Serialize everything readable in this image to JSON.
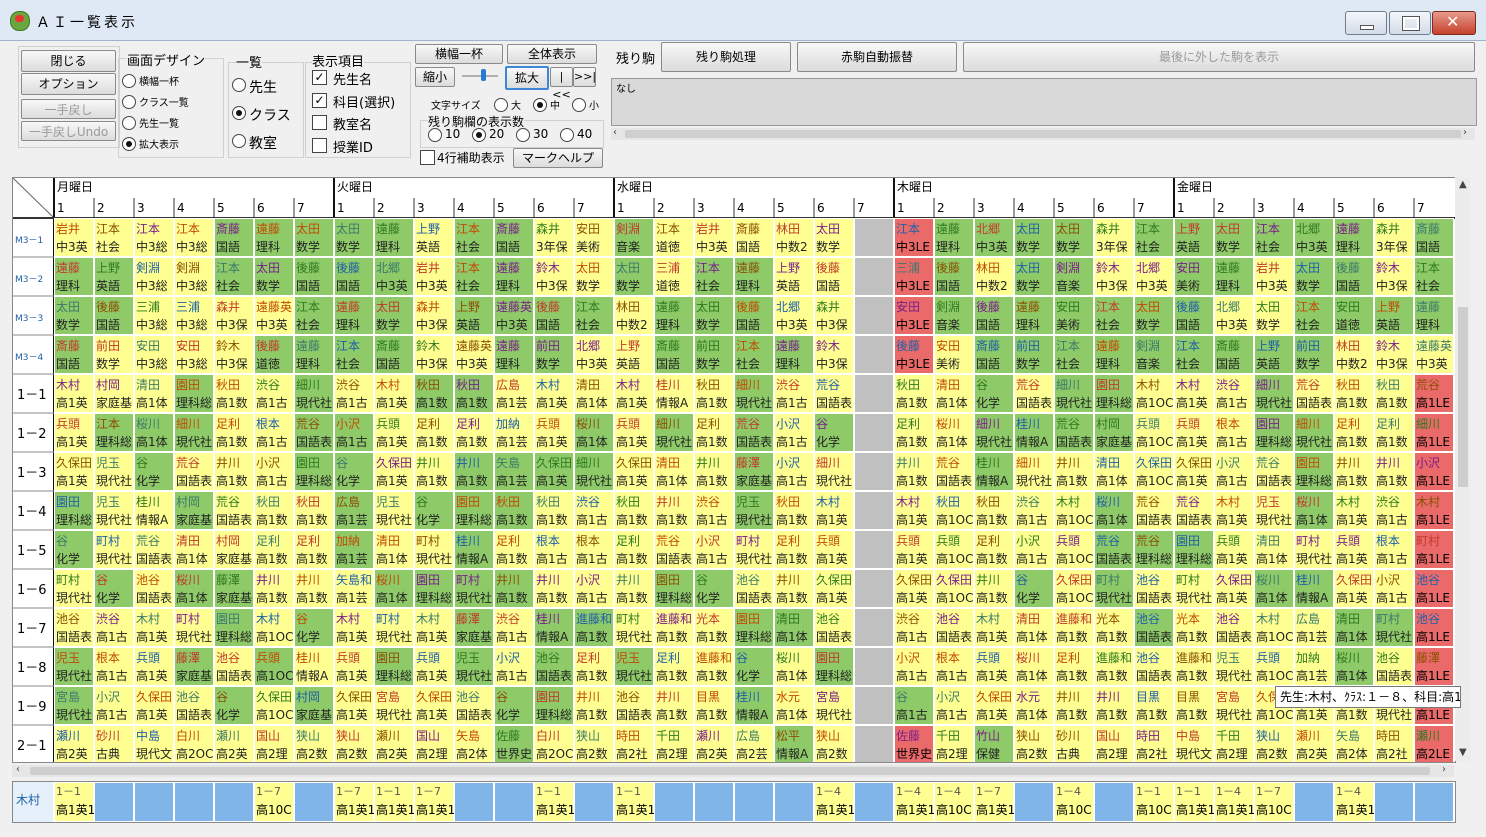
{
  "window": {
    "title": "ＡＩ一覧表示"
  },
  "left_buttons": {
    "close": "閉じる",
    "options": "オプション",
    "undo": "一手戻し",
    "undo_undo": "一手戻しUndo"
  },
  "screen_design": {
    "title": "画面デザイン",
    "options": [
      "横幅一杯",
      "クラス一覧",
      "先生一覧",
      "拡大表示"
    ],
    "selected": 3
  },
  "list": {
    "title": "一覧",
    "options": [
      "先生",
      "クラス",
      "教室"
    ],
    "selected": 1
  },
  "display_items": {
    "title": "表示項目",
    "options": [
      {
        "label": "先生名",
        "checked": true
      },
      {
        "label": "科目(選択)",
        "checked": true
      },
      {
        "label": "教室名",
        "checked": false
      },
      {
        "label": "授業ID",
        "checked": false
      }
    ]
  },
  "view": {
    "full_width": "横幅一杯",
    "show_all": "全体表示",
    "shrink": "縮小",
    "enlarge": "拡大",
    "first": "|<<",
    "last": ">>|",
    "font_size_label": "文字サイズ",
    "font_sizes": [
      "大",
      "中",
      "小"
    ],
    "font_selected": 1,
    "rows_label": "残り駒欄の表示数",
    "rows": [
      "10",
      "20",
      "30",
      "40"
    ],
    "rows_selected": 1,
    "four_row_label": "4行補助表示",
    "four_row_checked": false,
    "mark_help": "マークヘルプ"
  },
  "remaining": {
    "label": "残り駒",
    "process": "残り駒処理",
    "auto_swap": "赤駒自動振替",
    "show_last": "最後に外した駒を表示",
    "panel_text": "なし"
  },
  "colors": {
    "green": "#8fca69",
    "yellow": "#ffff91",
    "red": "#ea6a6a",
    "gray": "#c0c0c0",
    "white": "#ffffff",
    "blue": "#80b5ea"
  },
  "grid": {
    "days": [
      "月曜日",
      "火曜日",
      "水曜日",
      "木曜日",
      "金曜日"
    ],
    "periods": [
      "1",
      "2",
      "3",
      "4",
      "5",
      "6",
      "7"
    ],
    "rows": [
      "M3－1",
      "M3－2",
      "M3－3",
      "M3－4",
      "1－1",
      "1－2",
      "1－3",
      "1－4",
      "1－5",
      "1－6",
      "1－7",
      "1－8",
      "1－9",
      "2－1"
    ],
    "cells": [
      [
        "y|岩井|中3英",
        "y|江本|社会",
        "y|江本|中3総",
        "y|江本|中3総",
        "g|斎藤|国語",
        "g|遠藤|理科",
        "g|太田|数学",
        "g|太田|数学",
        "g|遠藤|理科",
        "y|上野|英語",
        "g|江本|社会",
        "g|斎藤|国語",
        "y|森井|3年保",
        "y|安田|美術",
        "g|剣淵|音楽",
        "y|江本|道徳",
        "y|岩井|中3英",
        "y|斎藤|国語",
        "y|林田|中数2",
        "y|太田|数学",
        "x",
        "r|江本|中3LE",
        "g|遠藤|理科",
        "g|北郷|中3英",
        "g|太田|数学",
        "g|太田|数学",
        "y|森井|3年保",
        "g|江本|社会",
        "g|上野|英語",
        "g|太田|数学",
        "g|江本|社会",
        "g|北郷|中3英",
        "g|遠藤|理科",
        "y|森井|3年保",
        "g|斎藤|国語"
      ],
      [
        "g|遠藤|理科",
        "g|上野|英語",
        "y|剣淵|中3総",
        "y|剣淵|中3総",
        "g|江本|社会",
        "g|太田|数学",
        "g|後藤|国語",
        "g|後藤|国語",
        "g|北郷|中3英",
        "y|岩井|中3英",
        "g|江本|社会",
        "g|遠藤|理科",
        "y|鈴木|中3保",
        "y|太田|数学",
        "g|太田|数学",
        "y|三浦|道徳",
        "g|江本|社会",
        "g|遠藤|理科",
        "y|上野|英語",
        "y|後藤|国語",
        "x",
        "r|三浦|中3LE",
        "g|後藤|国語",
        "y|林田|中数2",
        "g|太田|数学",
        "g|剣淵|音楽",
        "y|鈴木|中3保",
        "y|北郷|中3英",
        "g|安田|美術",
        "g|遠藤|理科",
        "y|岩井|中3英",
        "g|太田|数学",
        "g|後藤|国語",
        "y|鈴木|中3保",
        "g|江本|社会"
      ],
      [
        "g|太田|数学",
        "g|後藤|国語",
        "y|三浦|中3総",
        "y|三浦|中3総",
        "y|森井|中3保",
        "y|遠藤英|中3英",
        "g|江本|社会",
        "g|遠藤|理科",
        "g|太田|数学",
        "y|森井|中3保",
        "g|上野|英語",
        "g|遠藤英|中3英",
        "g|後藤|国語",
        "g|江本|社会",
        "y|林田|中数2",
        "g|遠藤|理科",
        "g|太田|数学",
        "g|後藤|国語",
        "y|北郷|中3英",
        "y|森井|中3保",
        "x",
        "r|安田|中3LE",
        "g|剣淵|音楽",
        "g|後藤|国語",
        "g|遠藤|理科",
        "g|安田|美術",
        "g|江本|社会",
        "g|太田|数学",
        "g|後藤|国語",
        "y|北郷|中3英",
        "y|太田|数学",
        "g|江本|社会",
        "g|安田|道徳",
        "g|上野|英語",
        "g|遠藤|理科"
      ],
      [
        "g|斎藤|国語",
        "y|前田|数学",
        "y|安田|中3総",
        "y|安田|中3総",
        "y|鈴木|中3保",
        "g|後藤|道徳",
        "g|遠藤|理科",
        "g|江本|社会",
        "g|斎藤|国語",
        "y|鈴木|中3保",
        "y|遠藤英|中3英",
        "g|遠藤|理科",
        "g|前田|数学",
        "y|北郷|中3英",
        "y|上野|英語",
        "g|斎藤|国語",
        "g|前田|数学",
        "g|江本|社会",
        "g|遠藤|理科",
        "y|鈴木|中3保",
        "x",
        "r|後藤|中3LE",
        "y|安田|美術",
        "g|斎藤|国語",
        "g|前田|数学",
        "g|江本|社会",
        "g|遠藤|理科",
        "g|剣淵|音楽",
        "g|江本|社会",
        "g|斎藤|国語",
        "g|上野|英語",
        "g|前田|数学",
        "y|林田|中数2",
        "y|鈴木|中3保",
        "y|遠藤英|中3英"
      ],
      [
        "y|木村|高1英",
        "y|村岡|家庭基",
        "y|清田|高1体",
        "g|園田|理科総",
        "y|秋田|高1数",
        "y|渋谷|高1古",
        "g|細川|現代社",
        "y|渋谷|高1古",
        "y|木村|高1英",
        "g|秋田|高1数",
        "g|秋田|高1数",
        "y|広島|高1芸",
        "y|木村|高1英",
        "y|清田|高1体",
        "y|木村|高1英",
        "y|桂川|情報A",
        "y|秋田|高1数",
        "g|細川|現代社",
        "y|渋谷|高1古",
        "y|荒谷|国語表",
        "x",
        "y|秋田|高1数",
        "y|清田|高1体",
        "g|谷|化学",
        "y|荒谷|国語表",
        "g|細川|現代社",
        "g|園田|理科総",
        "y|木村|高1OC",
        "y|木村|高1英",
        "y|渋谷|高1古",
        "g|細川|現代社",
        "y|荒谷|国語表",
        "y|秋田|高1数",
        "y|秋田|高1数",
        "r|荒谷|高1LE"
      ],
      [
        "y|兵頭|高1英",
        "g|江本|理科総",
        "g|桜川|高1体",
        "g|細川|現代社",
        "y|足利|高1数",
        "y|根本|高1古",
        "g|荒谷|国語表",
        "g|小沢|高1古",
        "y|兵頭|高1英",
        "y|足利|高1数",
        "y|足利|高1数",
        "y|加納|高1芸",
        "y|兵頭|高1英",
        "g|桜川|高1体",
        "y|兵頭|高1英",
        "g|細川|現代社",
        "y|足利|高1数",
        "g|荒谷|国語表",
        "y|小沢|高1古",
        "g|谷|化学",
        "x",
        "y|足利|高1数",
        "y|桜川|高1体",
        "g|細川|現代社",
        "g|桂川|情報A",
        "g|荒谷|国語表",
        "g|村岡|家庭基",
        "y|兵頭|高1OC",
        "y|兵頭|高1英",
        "y|根本|高1古",
        "g|園田|理科総",
        "g|細川|現代社",
        "y|足利|高1数",
        "y|足利|高1数",
        "r|細川|高1LE"
      ],
      [
        "y|久保田|高1英",
        "y|児玉|現代社",
        "g|谷|化学",
        "y|荒谷|国語表",
        "y|井川|高1数",
        "y|小沢|高1古",
        "g|園田|理科総",
        "g|谷|化学",
        "y|久保田|高1英",
        "y|井川|高1数",
        "g|井川|高1数",
        "g|矢島|高1芸",
        "g|久保田|高1英",
        "g|細川|現代社",
        "y|久保田|高1英",
        "y|清田|高1体",
        "y|井川|高1数",
        "g|藤澤|家庭基",
        "y|小沢|高1古",
        "y|細川|現代社",
        "x",
        "y|井川|高1数",
        "y|荒谷|国語表",
        "g|桂川|情報A",
        "y|細川|現代社",
        "y|井川|高1数",
        "y|清田|高1体",
        "y|久保田|高1OC",
        "y|久保田|高1英",
        "y|小沢|高1古",
        "y|荒谷|国語表",
        "g|園田|理科総",
        "y|井川|高1数",
        "y|井川|高1数",
        "r|小沢|高1LE"
      ],
      [
        "g|園田|理科総",
        "y|児玉|現代社",
        "y|桂川|情報A",
        "g|村岡|家庭基",
        "y|荒谷|国語表",
        "y|秋田|高1数",
        "y|秋田|高1数",
        "g|広島|高1芸",
        "y|児玉|現代社",
        "g|谷|化学",
        "g|園田|理科総",
        "g|秋田|高1数",
        "y|秋田|高1数",
        "y|渋谷|高1古",
        "y|秋田|高1数",
        "y|井川|高1数",
        "y|渋谷|高1古",
        "g|児玉|現代社",
        "y|秋田|高1数",
        "y|木村|高1英",
        "x",
        "y|木村|高1英",
        "y|秋田|高1OC",
        "y|秋田|高1数",
        "y|渋谷|高1古",
        "y|木村|高1OC",
        "g|桜川|高1体",
        "y|荒谷|国語表",
        "y|荒谷|国語表",
        "y|木村|高1英",
        "y|児玉|現代社",
        "g|桜川|高1体",
        "y|木村|高1英",
        "y|渋谷|高1古",
        "r|木村|高1LE"
      ],
      [
        "g|谷|化学",
        "y|町村|現代社",
        "y|荒谷|国語表",
        "y|清田|高1体",
        "y|村岡|家庭基",
        "y|足利|高1数",
        "y|足利|高1数",
        "g|加納|高1芸",
        "y|清田|高1体",
        "y|町村|現代社",
        "g|桂川|情報A",
        "y|足利|高1数",
        "y|根本|高1古",
        "y|根本|高1古",
        "y|足利|高1数",
        "y|荒谷|国語表",
        "y|小沢|高1古",
        "y|町村|現代社",
        "y|足利|高1数",
        "y|兵頭|高1英",
        "x",
        "y|兵頭|高1英",
        "y|兵頭|高1OC",
        "y|足利|高1数",
        "y|小沢|高1古",
        "y|兵頭|高1OC",
        "g|荒谷|国語表",
        "g|荒谷|理科総",
        "g|園田|理科総",
        "y|兵頭|高1英",
        "y|清田|高1体",
        "y|町村|現代社",
        "y|兵頭|高1英",
        "y|根本|高1古",
        "r|町村|高1LE"
      ],
      [
        "y|町村|現代社",
        "g|谷|化学",
        "y|池谷|国語表",
        "g|桜川|高1体",
        "g|藤澤|家庭基",
        "y|井川|高1数",
        "y|井川|高1数",
        "y|矢島和|高1芸",
        "g|桜川|高1体",
        "g|園田|理科総",
        "g|町村|現代社",
        "g|井川|高1数",
        "y|井川|高1数",
        "y|小沢|高1古",
        "y|井川|高1数",
        "g|園田|理科総",
        "g|谷|化学",
        "y|池谷|国語表",
        "y|井川|高1数",
        "y|久保田|高1英",
        "x",
        "y|久保田|高1英",
        "y|久保田|高1OC",
        "y|井川|高1数",
        "g|谷|化学",
        "y|久保田|高1OC",
        "g|町村|現代社",
        "y|池谷|国語表",
        "y|町村|現代社",
        "y|久保田|高1英",
        "g|桜川|高1体",
        "g|桂川|情報A",
        "y|久保田|高1英",
        "y|小沢|高1古",
        "r|池谷|高1LE"
      ],
      [
        "y|池谷|国語表",
        "y|渋谷|高1古",
        "y|木村|高1英",
        "y|町村|現代社",
        "g|園田|理科総",
        "y|木村|高1OC",
        "g|谷|化学",
        "y|木村|高1英",
        "y|町村|現代社",
        "y|木村|高1英",
        "g|藤澤|家庭基",
        "y|渋谷|高1古",
        "g|桂川|情報A",
        "g|進藤和|高1数",
        "y|町村|現代社",
        "y|進藤和|高1数",
        "y|光本|高1数",
        "g|園田|理科総",
        "g|清田|高1体",
        "y|池谷|国語表",
        "x",
        "y|渋谷|高1古",
        "y|池谷|国語表",
        "y|木村|高1英",
        "y|清田|高1体",
        "y|進藤和|高1数",
        "y|光本|高1数",
        "g|池谷|国語表",
        "y|光本|高1数",
        "y|池谷|国語表",
        "y|木村|高1OC",
        "y|広島|高1芸",
        "g|清田|高1体",
        "g|町村|現代社",
        "r|池谷|高1LE"
      ],
      [
        "g|児玉|現代社",
        "y|根本|高1古",
        "y|兵頭|高1英",
        "g|藤澤|家庭基",
        "y|池谷|国語表",
        "g|兵頭|高1OC",
        "y|桂川|情報A",
        "y|兵頭|高1英",
        "g|園田|理科総",
        "y|兵頭|高1英",
        "g|児玉|現代社",
        "y|小沢|高1古",
        "g|池谷|国語表",
        "y|足利|高1数",
        "g|児玉|現代社",
        "y|足利|高1数",
        "y|進藤和|高1数",
        "g|谷|化学",
        "y|桜川|高1体",
        "g|園田|理科総",
        "x",
        "y|小沢|高1古",
        "y|根本|高1古",
        "y|兵頭|高1英",
        "y|桜川|高1体",
        "y|足利|高1数",
        "y|進藤和|高1数",
        "y|池谷|国語表",
        "y|進藤和|高1数",
        "y|児玉|現代社",
        "y|兵頭|高1OC",
        "y|加納|高1芸",
        "g|桜川|高1体",
        "y|池谷|国語表",
        "r|藤澤|高1LE"
      ],
      [
        "g|宮島|現代社",
        "y|小沢|高1古",
        "y|久保田|高1英",
        "y|池谷|国語表",
        "g|谷|化学",
        "y|久保田|高1OC",
        "g|村岡|家庭基",
        "y|久保田|高1英",
        "y|宮島|現代社",
        "y|久保田|高1英",
        "y|池谷|国語表",
        "g|谷|化学",
        "g|園田|理科総",
        "y|井川|高1数",
        "y|池谷|国語表",
        "y|井川|高1数",
        "y|目黒|高1数",
        "g|桂川|情報A",
        "y|水元|高1体",
        "y|宮島|現代社",
        "x",
        "g|谷|高1古",
        "y|小沢|高1古",
        "y|久保田|高1英",
        "y|水元|高1体",
        "y|井川|高1数",
        "y|井川|高1数",
        "y|目黒|高1数",
        "y|目黒|高1数",
        "y|宮島|現代社",
        "y|久保田|高1OC",
        "y|久保田|高1英",
        "y|目黒|高1数",
        "y|宮島|現代社",
        "r|池谷|高1LE"
      ],
      [
        "y|瀬川|高2英",
        "y|砂川|古典",
        "y|中島|現代文",
        "y|白川|高2OC",
        "y|瀬川|高2英",
        "y|国山|高2理",
        "y|狭山|高2数",
        "y|狭山|高2数",
        "y|瀬川|高2英",
        "y|国山|高2理",
        "y|矢島|高2体",
        "g|佐藤|世界史",
        "y|白川|高2OC",
        "y|狭山|高2数",
        "y|時田|高2社",
        "y|千田|高2理",
        "y|瀬川|高2英",
        "y|広島|高2芸",
        "g|松平|情報A",
        "y|狭山|高2数",
        "x",
        "r|佐藤|世界史",
        "y|千田|高2理",
        "g|竹山|保健",
        "y|狭山|高2数",
        "y|砂川|古典",
        "y|国山|高2理",
        "y|時田|高2社",
        "y|中島|現代文",
        "y|千田|高2理",
        "y|狭山|高2数",
        "y|瀬川|高2英",
        "y|矢島|高2体",
        "y|時田|高2社",
        "r|瀬川|高2LE"
      ]
    ]
  },
  "tooltip": "先生:木村、ｸﾗｽ:１－８、科目:高1英",
  "bottom": {
    "teacher": "木村",
    "slots": [
      [
        "y|1－1|高1英1"
      ],
      [
        "b"
      ],
      [
        "b"
      ],
      [
        "b"
      ],
      [
        "b"
      ],
      [
        "y|1－7|高10C"
      ],
      [
        "b"
      ],
      [
        "y|1－7|高1英1"
      ],
      [
        "y|1－1|高1英1"
      ],
      [
        "y|1－7|高1英1"
      ],
      [
        "b"
      ],
      [
        "b"
      ],
      [
        "y|1－1|高1英1"
      ],
      [
        "b"
      ],
      [
        "y|1－1|高1英1"
      ],
      [
        "b"
      ],
      [
        "b"
      ],
      [
        "b"
      ],
      [
        "b"
      ],
      [
        "y|1－4|高1英1"
      ],
      [
        "b"
      ],
      [
        "y|1－4|高1英1"
      ],
      [
        "y|1－4|高10C"
      ],
      [
        "y|1－7|高1英1"
      ],
      [
        "b"
      ],
      [
        "y|1－4|高10C"
      ],
      [
        "b"
      ],
      [
        "y|1－1|高10C"
      ],
      [
        "y|1－1|高1英1"
      ],
      [
        "y|1－4|高1英1"
      ],
      [
        "y|1－7|高10C"
      ],
      [
        "b"
      ],
      [
        "y|1－4|高1英1"
      ],
      [
        "b"
      ],
      [
        "b"
      ]
    ]
  }
}
